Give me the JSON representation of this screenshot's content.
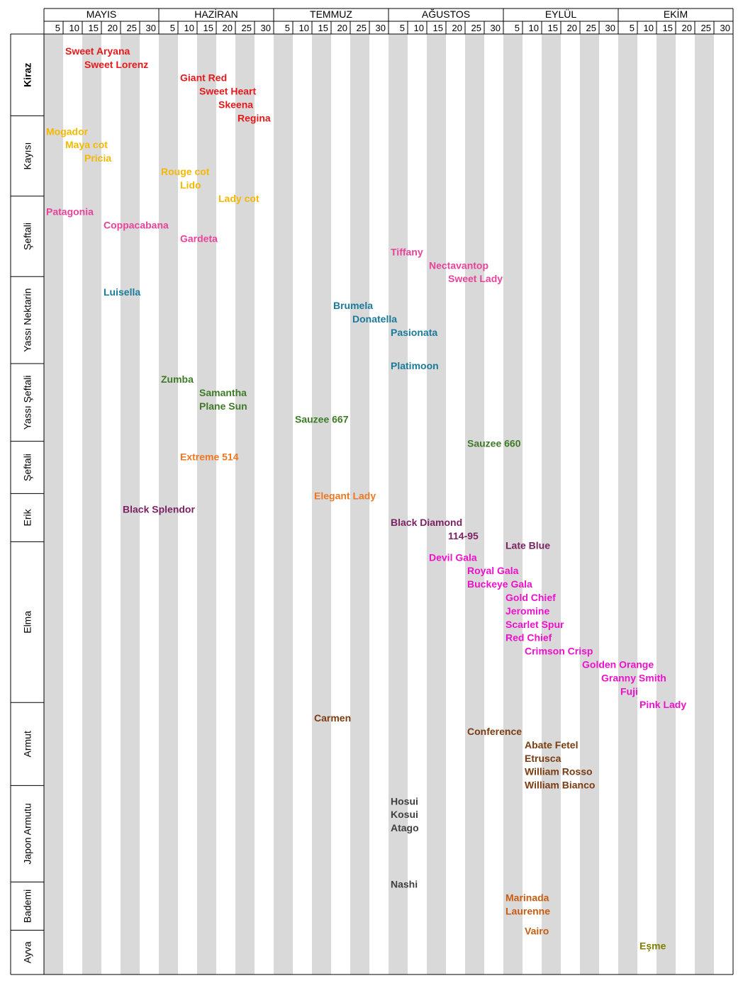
{
  "chart_data": {
    "type": "table",
    "title": "",
    "months": [
      "MAYIS",
      "HAZİRAN",
      "TEMMUZ",
      "AĞUSTOS",
      "EYLÜL",
      "EKİM"
    ],
    "day_ticks": [
      "5",
      "10",
      "15",
      "20",
      "25",
      "30"
    ],
    "categories": [
      {
        "label": "Kiraz",
        "bold": true,
        "rows": [
          0,
          6
        ]
      },
      {
        "label": "Kayısı",
        "bold": false,
        "rows": [
          6,
          12
        ]
      },
      {
        "label": "Şeftali",
        "bold": false,
        "rows": [
          12,
          18
        ]
      },
      {
        "label": "Yassı Nektarin",
        "bold": false,
        "rows": [
          18,
          24.5
        ]
      },
      {
        "label": "Yassı Şeftali",
        "bold": false,
        "rows": [
          24.5,
          30.3
        ]
      },
      {
        "label": "Şeftali",
        "bold": false,
        "rows": [
          30.3,
          34.2
        ]
      },
      {
        "label": "Erik",
        "bold": false,
        "rows": [
          34.2,
          37.8
        ]
      },
      {
        "label": "Elma",
        "bold": false,
        "rows": [
          37.8,
          49.8
        ]
      },
      {
        "label": "Armut",
        "bold": false,
        "rows": [
          49.8,
          56
        ]
      },
      {
        "label": "Japon Armutu",
        "bold": false,
        "rows": [
          56,
          63.2
        ]
      },
      {
        "label": "Bademi",
        "bold": false,
        "rows": [
          63.2,
          66.8
        ]
      },
      {
        "label": "Ayva",
        "bold": false,
        "rows": [
          66.8,
          70.3
        ]
      }
    ],
    "colors": {
      "kiraz": "#e41a1c",
      "kayisi": "#f5b800",
      "seftali": "#e8439b",
      "nektarin": "#1a7a9a",
      "yassi_seftali": "#3e7b27",
      "seftali2": "#ee7722",
      "erik": "#7b2264",
      "elma": "#ee11cc",
      "armut": "#7a3c10",
      "japon": "#404040",
      "badem": "#c75d12",
      "ayva": "#808000",
      "stripe": "#d9d9d9"
    },
    "varieties": [
      {
        "name": "Sweet Aryana",
        "start": 10,
        "row": 1,
        "color": "kiraz"
      },
      {
        "name": "Sweet Lorenz",
        "start": 15,
        "row": 2,
        "color": "kiraz"
      },
      {
        "name": "Giant Red",
        "start": 40,
        "row": 3,
        "color": "kiraz"
      },
      {
        "name": "Sweet Heart",
        "start": 45,
        "row": 4,
        "color": "kiraz"
      },
      {
        "name": "Skeena",
        "start": 50,
        "row": 5,
        "color": "kiraz"
      },
      {
        "name": "Regina",
        "start": 55,
        "row": 6,
        "color": "kiraz"
      },
      {
        "name": "Mogador",
        "start": 5,
        "row": 7,
        "color": "kayisi"
      },
      {
        "name": "Maya cot",
        "start": 10,
        "row": 8,
        "color": "kayisi"
      },
      {
        "name": "Pricia",
        "start": 15,
        "row": 9,
        "color": "kayisi"
      },
      {
        "name": "Rouge cot",
        "start": 35,
        "row": 10,
        "color": "kayisi"
      },
      {
        "name": "Lido",
        "start": 40,
        "row": 11,
        "color": "kayisi"
      },
      {
        "name": "Lady cot",
        "start": 50,
        "row": 12,
        "color": "kayisi"
      },
      {
        "name": "Patagonia",
        "start": 5,
        "row": 13,
        "color": "seftali"
      },
      {
        "name": "Coppacabana",
        "start": 20,
        "row": 14,
        "color": "seftali"
      },
      {
        "name": "Gardeta",
        "start": 40,
        "row": 15,
        "color": "seftali"
      },
      {
        "name": "Tiffany",
        "start": 95,
        "row": 16,
        "color": "seftali"
      },
      {
        "name": "Nectavantop",
        "start": 105,
        "row": 17,
        "color": "seftali"
      },
      {
        "name": "Sweet Lady",
        "start": 110,
        "row": 18,
        "color": "seftali"
      },
      {
        "name": "Luisella",
        "start": 20,
        "row": 19,
        "color": "nektarin"
      },
      {
        "name": "Brumela",
        "start": 80,
        "row": 20,
        "color": "nektarin"
      },
      {
        "name": "Donatella",
        "start": 85,
        "row": 21,
        "color": "nektarin"
      },
      {
        "name": "Pasionata",
        "start": 95,
        "row": 22,
        "color": "nektarin"
      },
      {
        "name": "Platimoon",
        "start": 95,
        "row": 24.5,
        "color": "nektarin"
      },
      {
        "name": "Zumba",
        "start": 35,
        "row": 25.5,
        "color": "yassi_seftali"
      },
      {
        "name": "Samantha",
        "start": 45,
        "row": 26.5,
        "color": "yassi_seftali"
      },
      {
        "name": "Plane Sun",
        "start": 45,
        "row": 27.5,
        "color": "yassi_seftali"
      },
      {
        "name": "Sauzee 667",
        "start": 70,
        "row": 28.5,
        "color": "yassi_seftali"
      },
      {
        "name": "Sauzee 660",
        "start": 115,
        "row": 30.3,
        "color": "yassi_seftali"
      },
      {
        "name": "Extreme 514",
        "start": 40,
        "row": 31.3,
        "color": "seftali2"
      },
      {
        "name": "Elegant Lady",
        "start": 75,
        "row": 34.2,
        "color": "seftali2"
      },
      {
        "name": "Black Splendor",
        "start": 25,
        "row": 35.2,
        "color": "erik"
      },
      {
        "name": "Black Diamond",
        "start": 95,
        "row": 36.2,
        "color": "erik"
      },
      {
        "name": "114-95",
        "start": 110,
        "row": 37.2,
        "color": "erik"
      },
      {
        "name": "Late Blue",
        "start": 125,
        "row": 37.9,
        "color": "erik"
      },
      {
        "name": "Devil Gala",
        "start": 105,
        "row": 38.8,
        "color": "elma"
      },
      {
        "name": "Royal Gala",
        "start": 115,
        "row": 39.8,
        "color": "elma"
      },
      {
        "name": "Buckeye Gala",
        "start": 115,
        "row": 40.8,
        "color": "elma"
      },
      {
        "name": "Gold Chief",
        "start": 125,
        "row": 41.8,
        "color": "elma"
      },
      {
        "name": "Jeromine",
        "start": 125,
        "row": 42.8,
        "color": "elma"
      },
      {
        "name": "Scarlet Spur",
        "start": 125,
        "row": 43.8,
        "color": "elma"
      },
      {
        "name": "Red Chief",
        "start": 125,
        "row": 44.8,
        "color": "elma"
      },
      {
        "name": "Crimson Crisp",
        "start": 130,
        "row": 45.8,
        "color": "elma"
      },
      {
        "name": "Golden Orange",
        "start": 145,
        "row": 46.8,
        "color": "elma"
      },
      {
        "name": "Granny Smith",
        "start": 150,
        "row": 47.8,
        "color": "elma"
      },
      {
        "name": "Fuji",
        "start": 155,
        "row": 48.8,
        "color": "elma"
      },
      {
        "name": "Pink Lady",
        "start": 160,
        "row": 49.8,
        "color": "elma"
      },
      {
        "name": "Carmen",
        "start": 75,
        "row": 50.8,
        "color": "armut"
      },
      {
        "name": "Conference",
        "start": 115,
        "row": 51.8,
        "color": "armut"
      },
      {
        "name": "Abate Fetel",
        "start": 130,
        "row": 52.8,
        "color": "armut"
      },
      {
        "name": "Etrusca",
        "start": 130,
        "row": 53.8,
        "color": "armut"
      },
      {
        "name": "William Rosso",
        "start": 130,
        "row": 54.8,
        "color": "armut"
      },
      {
        "name": "William Bianco",
        "start": 130,
        "row": 55.8,
        "color": "armut"
      },
      {
        "name": "Hosui",
        "start": 95,
        "row": 57,
        "color": "japon"
      },
      {
        "name": "Kosui",
        "start": 95,
        "row": 58,
        "color": "japon"
      },
      {
        "name": "Atago",
        "start": 95,
        "row": 59,
        "color": "japon"
      },
      {
        "name": "Nashi",
        "start": 95,
        "row": 63.2,
        "color": "japon"
      },
      {
        "name": "Marinada",
        "start": 125,
        "row": 64.2,
        "color": "badem"
      },
      {
        "name": "Laurenne",
        "start": 125,
        "row": 65.2,
        "color": "badem"
      },
      {
        "name": "Vairo",
        "start": 130,
        "row": 66.7,
        "color": "badem"
      },
      {
        "name": "Eşme",
        "start": 160,
        "row": 67.8,
        "color": "ayva"
      }
    ]
  }
}
